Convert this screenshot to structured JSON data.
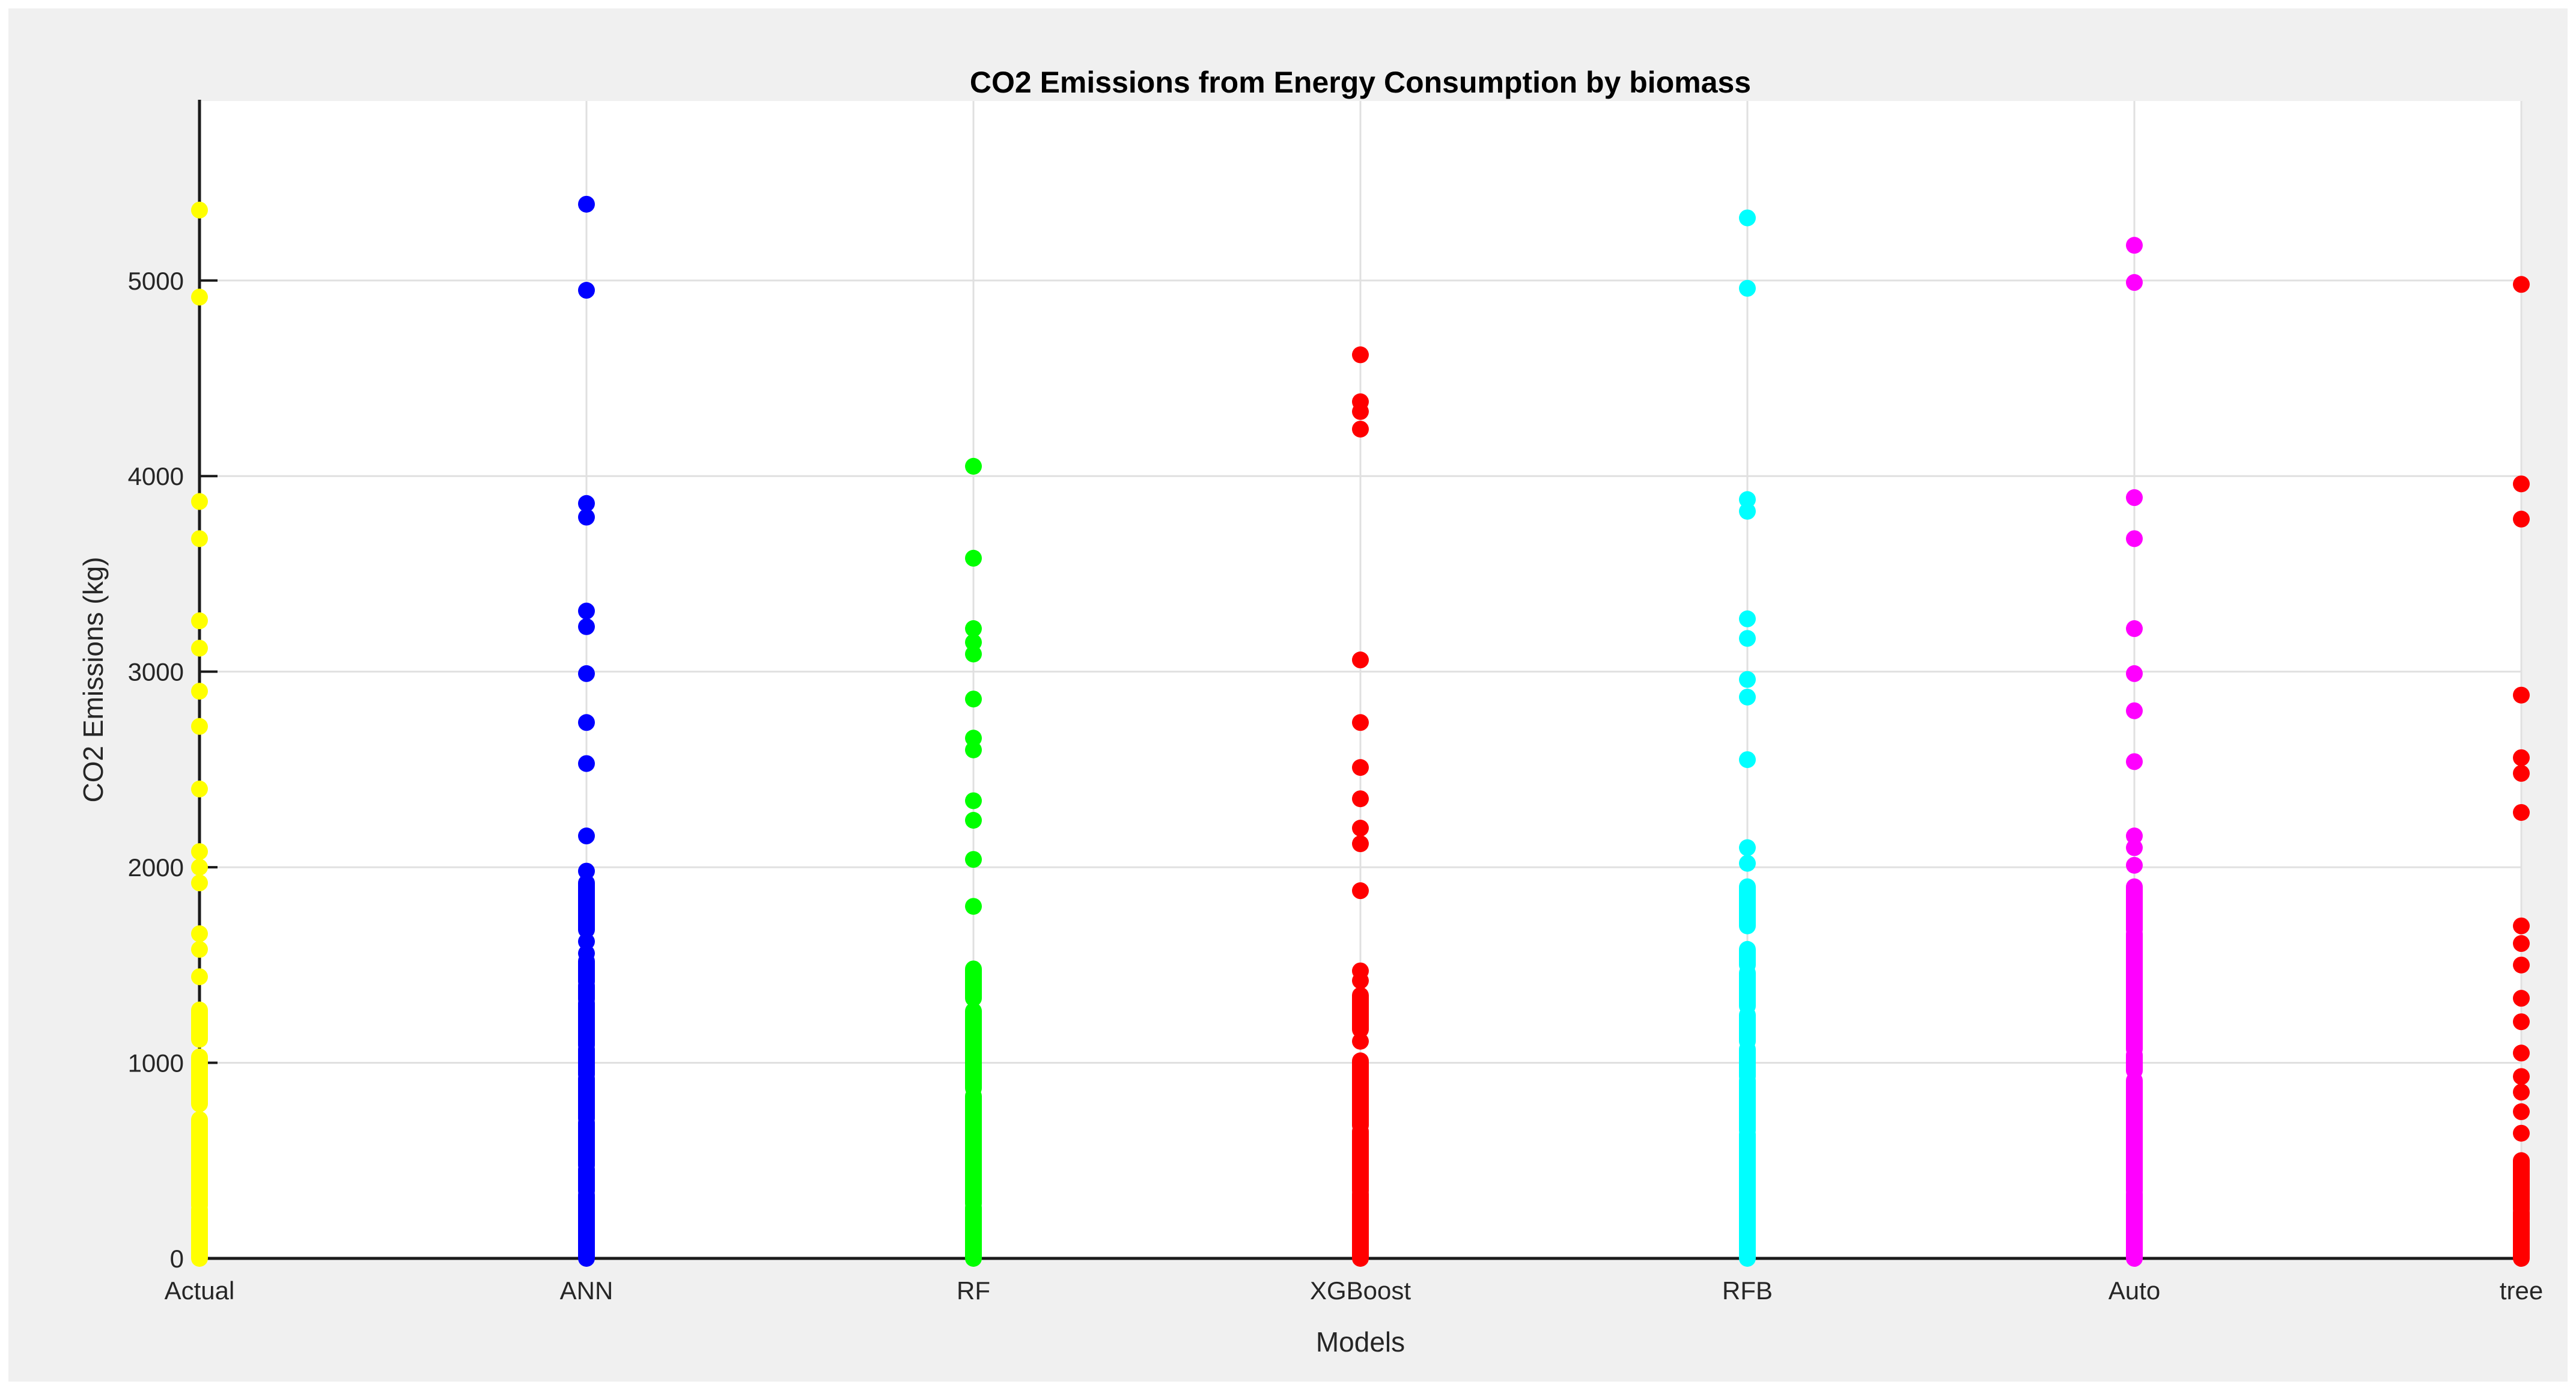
{
  "figure": {
    "margin_background": "#FFFFFF",
    "background": "#F0F0F0",
    "plot_background": "#FFFFFF",
    "grid_color": "#E0E0E0",
    "axis_color": "#1A1A1A",
    "tick_color": "#1A1A1A",
    "tick_label_color": "#262626",
    "title_color": "#000000"
  },
  "chart_data": {
    "type": "scatter",
    "title": "CO2 Emissions from Energy Consumption by biomass",
    "xlabel": "Models",
    "ylabel": "CO2 Emissions (kg)",
    "categories": [
      "Actual",
      "ANN",
      "RF",
      "XGBoost",
      "RFB",
      "Auto",
      "tree"
    ],
    "y_ticks": [
      0,
      1000,
      2000,
      3000,
      4000,
      5000
    ],
    "ylim": [
      0,
      5918
    ],
    "grid": true,
    "legend_position": "none",
    "marker": "filled-circle",
    "series": [
      {
        "name": "Actual",
        "color": "#FFFF00",
        "points": [
          5360,
          4915,
          3870,
          3680,
          3260,
          3120,
          2900,
          2720,
          2400,
          2080,
          2000,
          1920,
          1660,
          1580,
          1440
        ],
        "dense_ranges": [
          [
            1120,
            1270
          ],
          [
            790,
            1030
          ],
          [
            270,
            710
          ],
          [
            0,
            250
          ]
        ]
      },
      {
        "name": "ANN",
        "color": "#0000FF",
        "points": [
          5390,
          4950,
          3860,
          3790,
          3310,
          3230,
          2990,
          2740,
          2530,
          2160,
          1980,
          1620,
          1560
        ],
        "dense_ranges": [
          [
            1680,
            1920
          ],
          [
            1415,
            1520
          ],
          [
            1325,
            1395
          ],
          [
            1090,
            1305
          ],
          [
            940,
            1070
          ],
          [
            715,
            920
          ],
          [
            475,
            695
          ],
          [
            345,
            455
          ],
          [
            0,
            325
          ]
        ]
      },
      {
        "name": "RF",
        "color": "#00FF00",
        "points": [
          4050,
          3580,
          3220,
          3150,
          3090,
          2860,
          2660,
          2600,
          2340,
          2240,
          2040,
          1800
        ],
        "dense_ranges": [
          [
            1330,
            1480
          ],
          [
            870,
            1265
          ],
          [
            280,
            830
          ],
          [
            0,
            260
          ]
        ]
      },
      {
        "name": "XGBoost",
        "color": "#FF0000",
        "points": [
          4620,
          4380,
          4330,
          4240,
          3060,
          2740,
          2510,
          2350,
          2200,
          2120,
          1880,
          1470,
          1420,
          1110
        ],
        "dense_ranges": [
          [
            1170,
            1345
          ],
          [
            680,
            1010
          ],
          [
            345,
            650
          ],
          [
            0,
            330
          ]
        ]
      },
      {
        "name": "RFB",
        "color": "#00FFFF",
        "points": [
          5320,
          4960,
          3880,
          3820,
          3270,
          3170,
          2960,
          2870,
          2550,
          2100,
          2020
        ],
        "dense_ranges": [
          [
            1700,
            1900
          ],
          [
            1500,
            1580
          ],
          [
            1290,
            1460
          ],
          [
            1110,
            1245
          ],
          [
            930,
            1070
          ],
          [
            655,
            910
          ],
          [
            0,
            635
          ]
        ]
      },
      {
        "name": "Auto",
        "color": "#FF00FF",
        "points": [
          5180,
          4990,
          3890,
          3680,
          3220,
          2990,
          2800,
          2540,
          2160,
          2100,
          2010
        ],
        "dense_ranges": [
          [
            1680,
            1900
          ],
          [
            1070,
            1660
          ],
          [
            960,
            1040
          ],
          [
            345,
            910
          ],
          [
            0,
            330
          ]
        ]
      },
      {
        "name": "tree",
        "color": "#FF0000",
        "points": [
          4980,
          3960,
          3780,
          2880,
          2560,
          2480,
          2280,
          1700,
          1610,
          1500,
          1330,
          1210,
          1050,
          930,
          850,
          750,
          640
        ],
        "dense_ranges": [
          [
            250,
            500
          ],
          [
            0,
            235
          ]
        ]
      }
    ]
  }
}
